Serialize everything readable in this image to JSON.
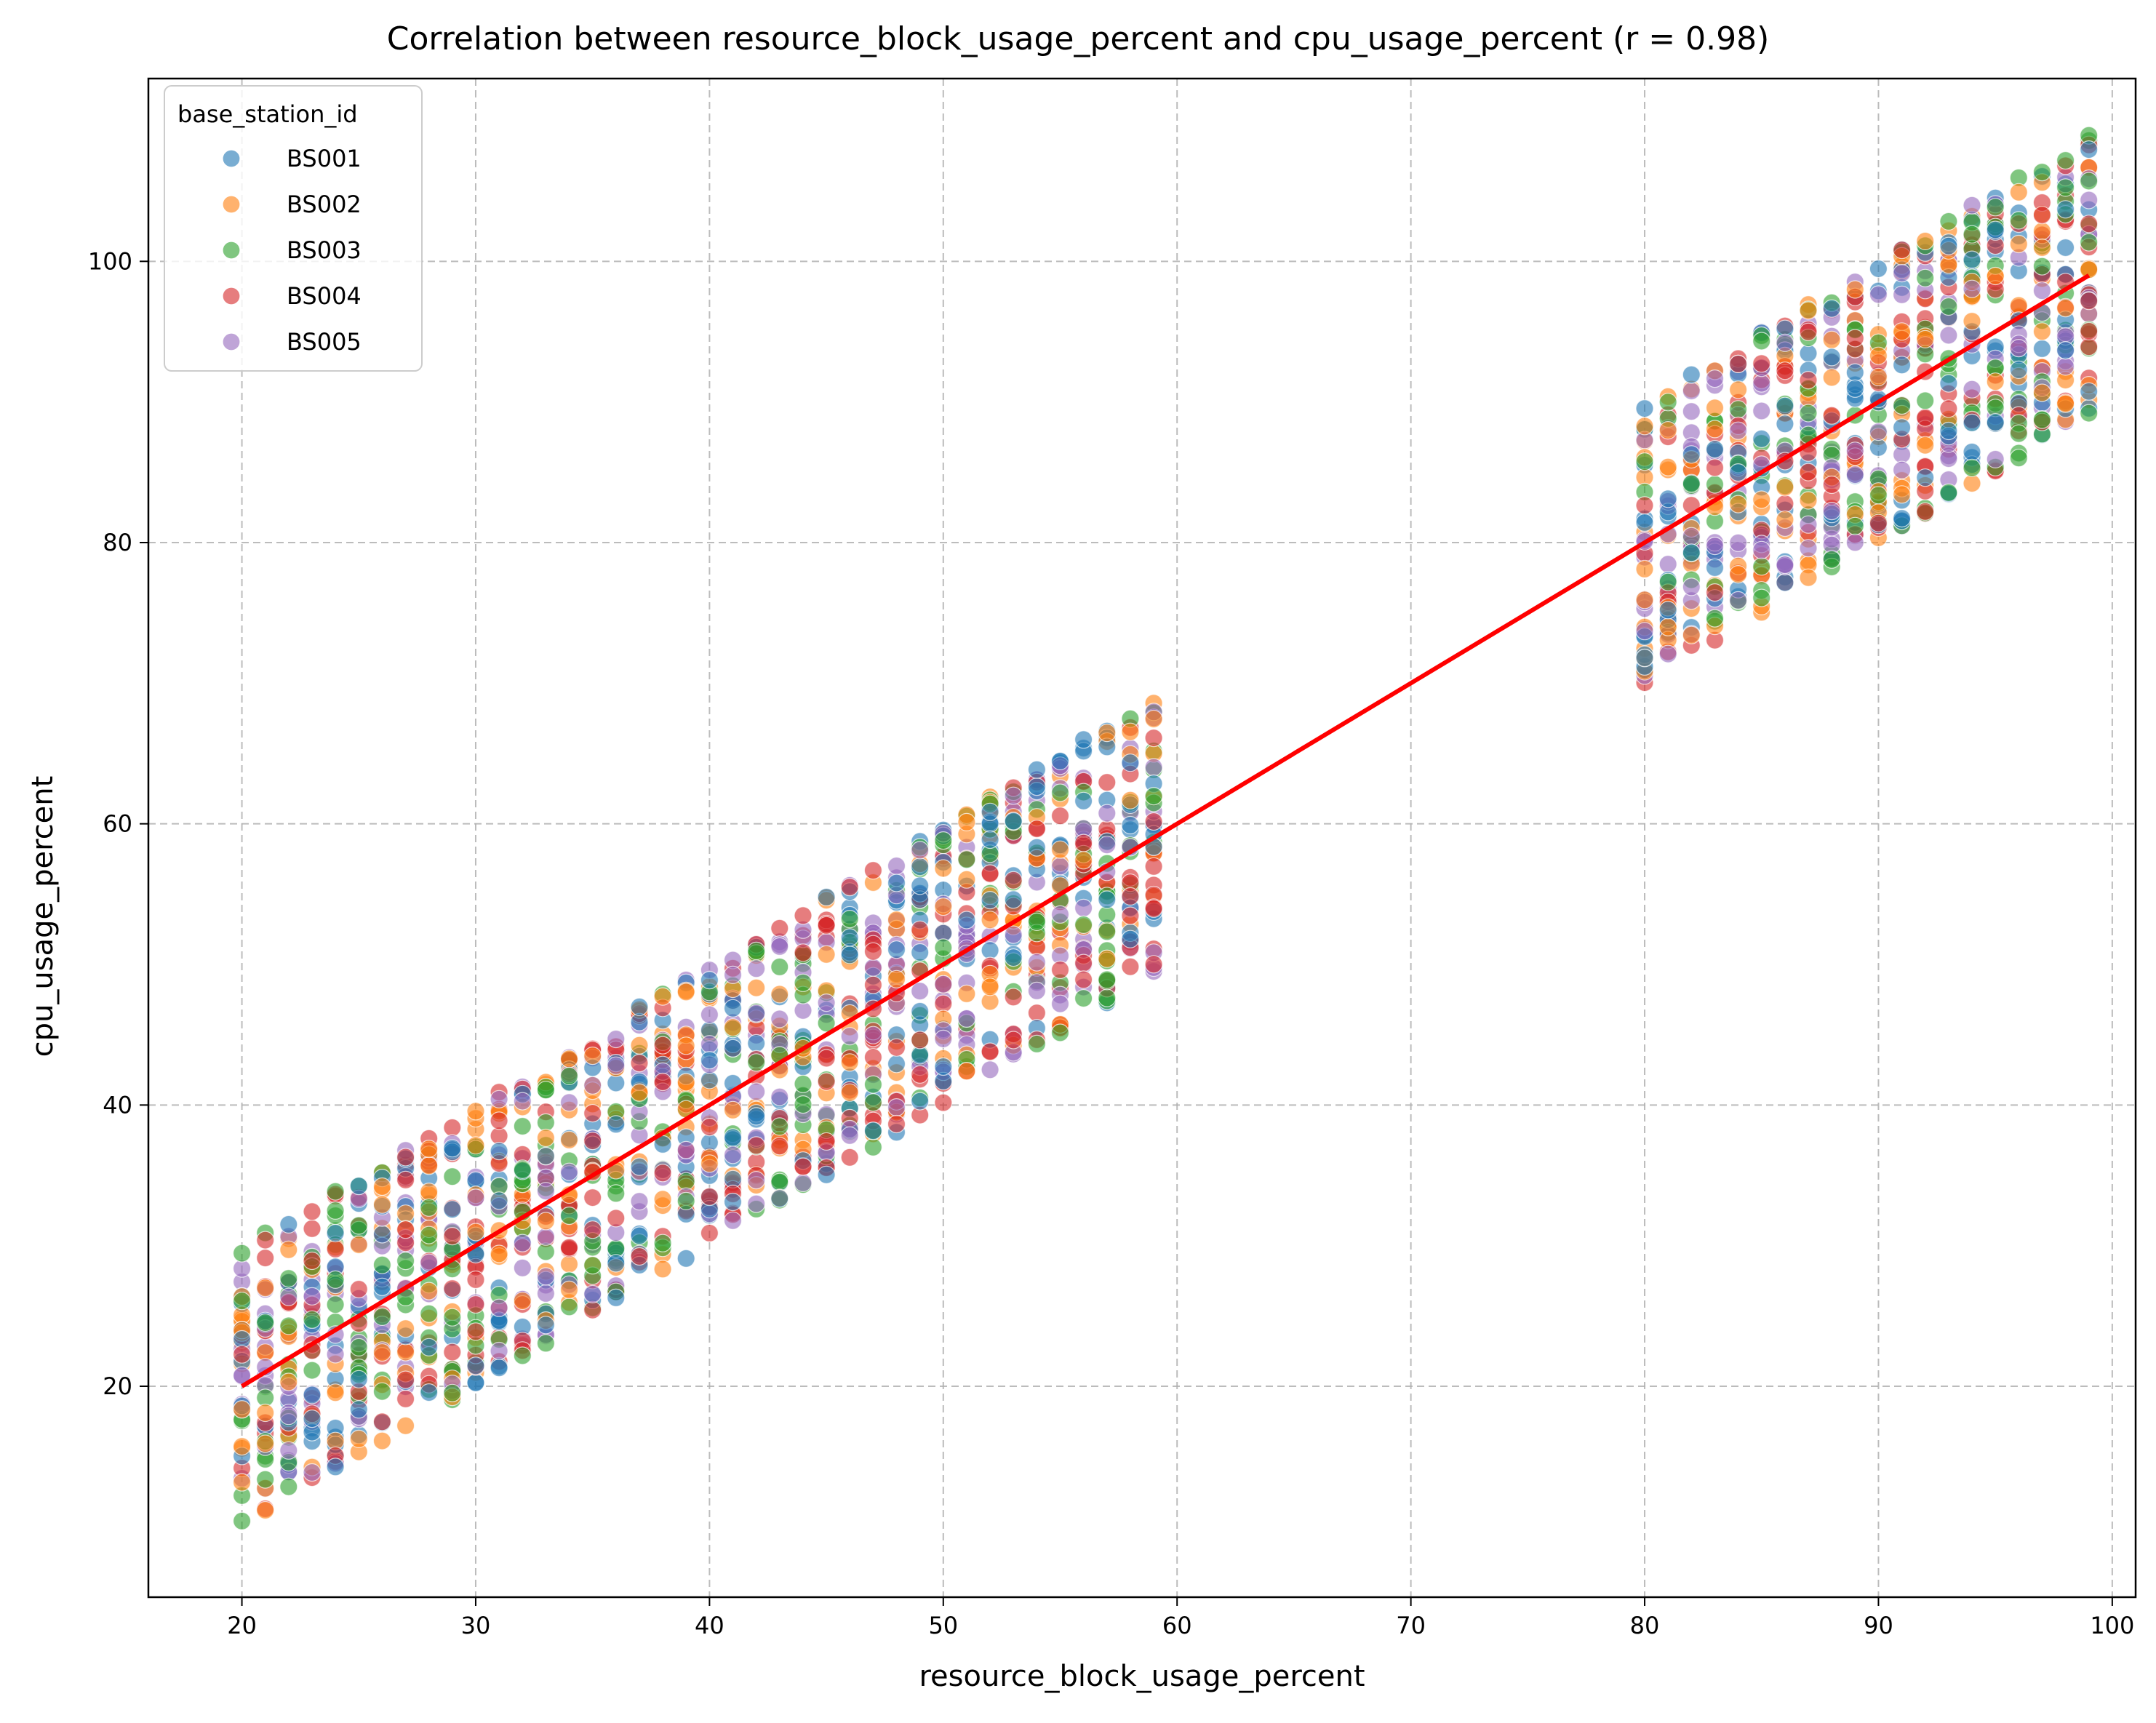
{
  "chart_data": {
    "type": "scatter",
    "title": "Correlation between resource_block_usage_percent and cpu_usage_percent (r = 0.98)",
    "xlabel": "resource_block_usage_percent",
    "ylabel": "cpu_usage_percent",
    "xlim": [
      16,
      101
    ],
    "ylim": [
      5,
      113
    ],
    "xticks": [
      20,
      30,
      40,
      50,
      60,
      70,
      80,
      90,
      100
    ],
    "yticks": [
      20,
      40,
      60,
      80,
      100
    ],
    "grid": true,
    "legend": {
      "title": "base_station_id",
      "placement": "top-left",
      "entries": [
        "BS001",
        "BS002",
        "BS003",
        "BS004",
        "BS005"
      ]
    },
    "colors": {
      "BS001": "#1f77b4",
      "BS002": "#ff7f0e",
      "BS003": "#2ca02c",
      "BS004": "#d62728",
      "BS005": "#9467bd",
      "regression": "#ff0000"
    },
    "point_alpha": 0.6,
    "x_integer_ranges": [
      [
        20,
        59
      ],
      [
        80,
        99
      ]
    ],
    "relationship": "y ranges from x-10 to x+10 for each integer x",
    "series": [
      {
        "name": "BS001"
      },
      {
        "name": "BS002"
      },
      {
        "name": "BS003"
      },
      {
        "name": "BS004"
      },
      {
        "name": "BS005"
      }
    ],
    "regression_line": {
      "x": [
        20,
        99
      ],
      "y": [
        20,
        99
      ]
    }
  }
}
